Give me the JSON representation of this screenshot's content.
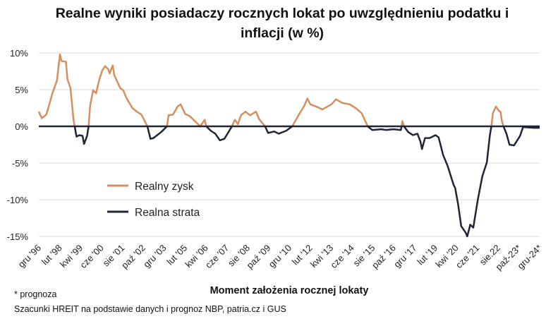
{
  "chart_data": {
    "type": "line",
    "title_lines": [
      "Realne wyniki posiadaczy rocznych lokat po uwzględnieniu podatku i",
      "inflacji (w %)"
    ],
    "xlabel": "Moment założenia rocznej lokaty",
    "ylabel": "",
    "ylim": [
      -15,
      10
    ],
    "yticks": [
      10,
      5,
      0,
      -5,
      -10,
      -15
    ],
    "ytick_labels": [
      "10%",
      "5%",
      "0%",
      "-5%",
      "-10%",
      "-15%"
    ],
    "x_unit": "months since Dec 1996",
    "xtick_step_months": 14,
    "xtick_labels": [
      "gru '96",
      "lut '98",
      "kwi '99",
      "cze '00",
      "sie '01",
      "paź '02",
      "gru '03",
      "lut '05",
      "kwi '06",
      "cze '07",
      "sie '08",
      "paź '09",
      "gru '10",
      "lut '12",
      "kwi '13",
      "cze '14",
      "sie '15",
      "paź '16",
      "gru '17",
      "lut '19",
      "kwi '20",
      "cze '21",
      "sie.22",
      "paź-23*",
      "gru-24*"
    ],
    "grid": true,
    "legend": {
      "placement": "center-left",
      "entries": [
        "Realny zysk",
        "Realna strata"
      ]
    },
    "colors": {
      "Realny zysk": "#D68F5C",
      "Realna strata": "#1E2537",
      "zero_line": "#1E2537",
      "grid": "#D9D9D9"
    },
    "series_note": "Single real-return series; values above 0 drawn as 'Realny zysk', below 0 as 'Realna strata'",
    "points": [
      [
        0,
        2.0
      ],
      [
        2,
        1.1
      ],
      [
        5,
        1.6
      ],
      [
        7,
        3.0
      ],
      [
        9,
        4.5
      ],
      [
        12,
        6.2
      ],
      [
        14,
        9.8
      ],
      [
        15,
        8.9
      ],
      [
        18,
        8.8
      ],
      [
        19,
        6.4
      ],
      [
        21,
        5.2
      ],
      [
        23,
        0.9
      ],
      [
        25,
        -1.4
      ],
      [
        27,
        -1.2
      ],
      [
        29,
        -1.3
      ],
      [
        30,
        -2.4
      ],
      [
        32,
        -1.3
      ],
      [
        33,
        0
      ],
      [
        34,
        2.8
      ],
      [
        36,
        4.9
      ],
      [
        38,
        4.5
      ],
      [
        40,
        6.3
      ],
      [
        42,
        7.6
      ],
      [
        44,
        8.2
      ],
      [
        46,
        7.8
      ],
      [
        47,
        7.2
      ],
      [
        49,
        8.3
      ],
      [
        50,
        7.0
      ],
      [
        54,
        5.2
      ],
      [
        56,
        4.9
      ],
      [
        58,
        3.9
      ],
      [
        62,
        2.5
      ],
      [
        65,
        2.0
      ],
      [
        68,
        1.6
      ],
      [
        72,
        0
      ],
      [
        74,
        -1.7
      ],
      [
        76,
        -1.6
      ],
      [
        81,
        -0.8
      ],
      [
        85,
        0
      ],
      [
        86,
        1.5
      ],
      [
        89,
        1.6
      ],
      [
        92,
        2.7
      ],
      [
        94,
        3.0
      ],
      [
        97,
        1.7
      ],
      [
        100,
        1.4
      ],
      [
        104,
        0.6
      ],
      [
        107,
        0
      ],
      [
        110,
        0.9
      ],
      [
        111,
        0
      ],
      [
        114,
        -0.6
      ],
      [
        117,
        -1.0
      ],
      [
        120,
        -1.9
      ],
      [
        123,
        -1.7
      ],
      [
        126,
        -0.7
      ],
      [
        128,
        0
      ],
      [
        130,
        0.9
      ],
      [
        132,
        0.3
      ],
      [
        134,
        1.5
      ],
      [
        137,
        2.0
      ],
      [
        140,
        1.5
      ],
      [
        144,
        2.0
      ],
      [
        146,
        1.0
      ],
      [
        150,
        0
      ],
      [
        152,
        -0.9
      ],
      [
        156,
        -0.7
      ],
      [
        159,
        -1.0
      ],
      [
        164,
        -0.6
      ],
      [
        168,
        0
      ],
      [
        173,
        1.8
      ],
      [
        176,
        2.8
      ],
      [
        178,
        3.8
      ],
      [
        180,
        3.0
      ],
      [
        185,
        2.6
      ],
      [
        188,
        2.3
      ],
      [
        194,
        3.0
      ],
      [
        197,
        3.7
      ],
      [
        201,
        3.2
      ],
      [
        206,
        3.0
      ],
      [
        210,
        2.5
      ],
      [
        214,
        1.8
      ],
      [
        218,
        0
      ],
      [
        221,
        -0.5
      ],
      [
        227,
        -0.4
      ],
      [
        230,
        -0.5
      ],
      [
        235,
        -0.4
      ],
      [
        240,
        -0.5
      ],
      [
        241,
        0.7
      ],
      [
        242,
        0
      ],
      [
        245,
        -0.8
      ],
      [
        248,
        -1.2
      ],
      [
        251,
        -1.0
      ],
      [
        253,
        -2.1
      ],
      [
        254,
        -3.1
      ],
      [
        256,
        -1.6
      ],
      [
        259,
        -1.6
      ],
      [
        263,
        -1.2
      ],
      [
        265,
        -1.5
      ],
      [
        268,
        -3.9
      ],
      [
        271,
        -5.4
      ],
      [
        275,
        -8.0
      ],
      [
        276,
        -8.4
      ],
      [
        278,
        -10.7
      ],
      [
        280,
        -13.6
      ],
      [
        283,
        -14.5
      ],
      [
        284,
        -15.0
      ],
      [
        286,
        -13.4
      ],
      [
        288,
        -13.8
      ],
      [
        291,
        -10.0
      ],
      [
        294,
        -6.8
      ],
      [
        297,
        -4.9
      ],
      [
        299,
        -1.2
      ],
      [
        300,
        0
      ],
      [
        301,
        1.8
      ],
      [
        303,
        2.7
      ],
      [
        305,
        2.1
      ],
      [
        306,
        2.0
      ],
      [
        307,
        0.7
      ],
      [
        308,
        0
      ],
      [
        310,
        -1.0
      ],
      [
        312,
        -2.5
      ],
      [
        315,
        -2.6
      ],
      [
        319,
        -1.3
      ],
      [
        321,
        -0.1
      ],
      [
        328,
        -0.2
      ],
      [
        332,
        -0.2
      ]
    ]
  },
  "footnotes": [
    "* prognoza",
    "Szacunki HREIT na podstawie danych i prognoz NBP,  patria.cz  i GUS"
  ]
}
